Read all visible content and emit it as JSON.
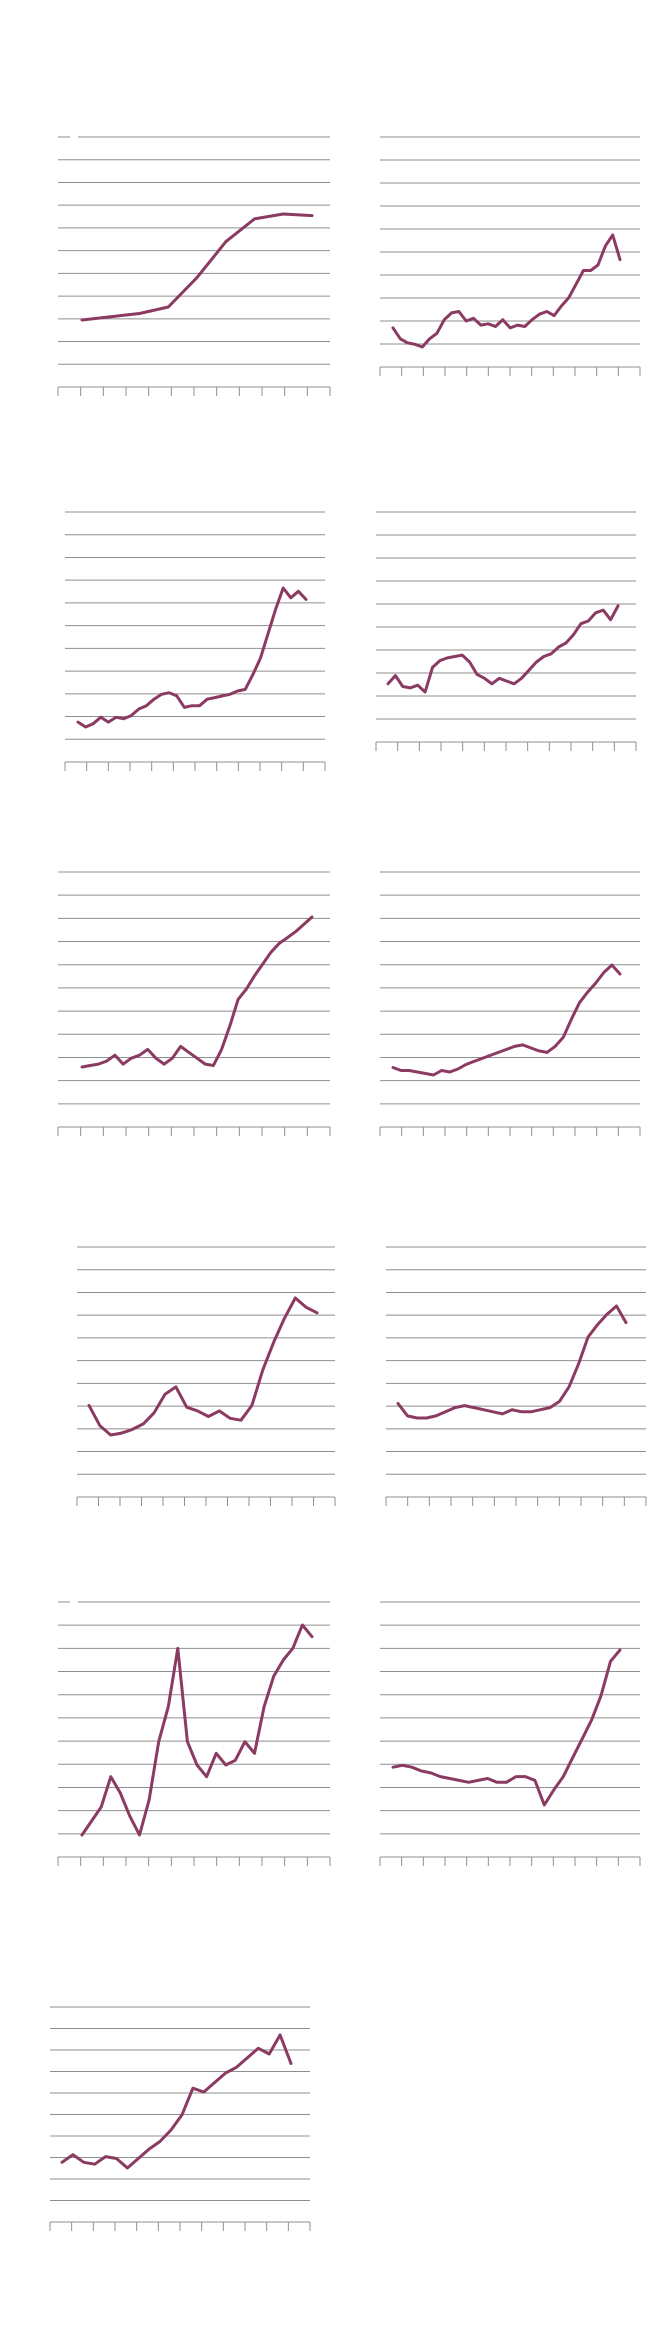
{
  "colors": {
    "line": "#8b3a62",
    "grid": "#8f8f8f",
    "axis": "#8f8f8f",
    "background": "#ffffff"
  },
  "chart_data": [
    {
      "type": "line",
      "grid": true,
      "values": [
        0.2,
        0.4,
        0.6,
        1.0,
        2.8,
        5.0,
        6.4,
        6.7,
        6.6
      ]
    },
    {
      "type": "line",
      "grid": true,
      "values": [
        2.4,
        1.6,
        1.3,
        1.2,
        1.0,
        1.6,
        2.0,
        3.0,
        3.5,
        3.6,
        2.9,
        3.1,
        2.6,
        2.7,
        2.5,
        3.0,
        2.4,
        2.6,
        2.5,
        3.0,
        3.4,
        3.6,
        3.3,
        4.0,
        4.6,
        5.6,
        6.6,
        6.6,
        7.0,
        8.4,
        9.2,
        7.4
      ]
    },
    {
      "type": "line",
      "grid": true,
      "values": [
        1.6,
        1.3,
        1.5,
        1.9,
        1.6,
        1.9,
        1.8,
        2.0,
        2.4,
        2.6,
        3.0,
        3.3,
        3.4,
        3.2,
        2.5,
        2.6,
        2.6,
        3.0,
        3.1,
        3.2,
        3.3,
        3.5,
        3.6,
        4.5,
        5.5,
        7.0,
        8.5,
        9.8,
        9.2,
        9.6,
        9.1
      ]
    },
    {
      "type": "line",
      "grid": true,
      "values": [
        3.6,
        4.2,
        3.4,
        3.3,
        3.5,
        3.0,
        4.8,
        5.3,
        5.5,
        5.6,
        5.7,
        5.2,
        4.3,
        4.0,
        3.6,
        4.0,
        3.8,
        3.6,
        4.0,
        4.6,
        5.2,
        5.6,
        5.8,
        6.3,
        6.6,
        7.2,
        8.0,
        8.2,
        8.8,
        9.0,
        8.3,
        9.3
      ]
    },
    {
      "type": "line",
      "grid": true,
      "values": [
        3.2,
        3.3,
        3.4,
        3.6,
        4.0,
        3.4,
        3.8,
        4.0,
        4.4,
        3.8,
        3.4,
        3.8,
        4.6,
        4.2,
        3.8,
        3.4,
        3.3,
        4.4,
        6.0,
        7.8,
        8.5,
        9.4,
        10.2,
        11.0,
        11.6,
        12.0,
        12.4,
        12.9,
        13.4
      ]
    },
    {
      "type": "line",
      "grid": true,
      "values": [
        1.0,
        0.8,
        0.8,
        0.7,
        0.6,
        0.5,
        0.8,
        0.7,
        0.9,
        1.2,
        1.4,
        1.6,
        1.8,
        2.0,
        2.2,
        2.4,
        2.5,
        2.3,
        2.1,
        2.0,
        2.4,
        3.0,
        4.2,
        5.3,
        6.0,
        6.6,
        7.3,
        7.8,
        7.2
      ]
    },
    {
      "type": "line",
      "grid": true,
      "values": [
        3.6,
        2.5,
        2.0,
        2.1,
        2.3,
        2.6,
        3.2,
        4.2,
        4.6,
        3.5,
        3.3,
        3.0,
        3.3,
        2.9,
        2.8,
        3.6,
        5.5,
        7.0,
        8.3,
        9.4,
        8.9,
        8.6
      ]
    },
    {
      "type": "line",
      "grid": true,
      "values": [
        4.2,
        3.6,
        3.5,
        3.5,
        3.6,
        3.8,
        4.0,
        4.1,
        4.0,
        3.9,
        3.8,
        3.7,
        3.9,
        3.8,
        3.8,
        3.9,
        4.0,
        4.3,
        5.0,
        6.1,
        7.4,
        8.0,
        8.5,
        8.9,
        8.1
      ]
    },
    {
      "type": "line",
      "grid": true,
      "values": [
        1.0,
        1.6,
        2.2,
        3.5,
        2.8,
        1.8,
        1.0,
        2.5,
        5.0,
        6.5,
        9.0,
        5.0,
        4.0,
        3.5,
        4.5,
        4.0,
        4.2,
        5.0,
        4.5,
        6.5,
        7.8,
        8.5,
        9.0,
        10.0,
        9.5
      ]
    },
    {
      "type": "line",
      "grid": true,
      "values": [
        5.0,
        5.1,
        5.0,
        4.8,
        4.7,
        4.5,
        4.4,
        4.3,
        4.2,
        4.3,
        4.4,
        4.2,
        4.2,
        4.5,
        4.5,
        4.3,
        3.0,
        3.8,
        4.5,
        5.5,
        6.5,
        7.5,
        8.8,
        10.6,
        11.2
      ]
    },
    {
      "type": "line",
      "grid": true,
      "values": [
        2.3,
        2.7,
        2.3,
        2.2,
        2.6,
        2.5,
        2.0,
        2.5,
        3.0,
        3.4,
        4.0,
        4.8,
        6.2,
        6.0,
        6.5,
        7.0,
        7.3,
        7.8,
        8.3,
        8.0,
        9.0,
        7.5
      ]
    }
  ]
}
